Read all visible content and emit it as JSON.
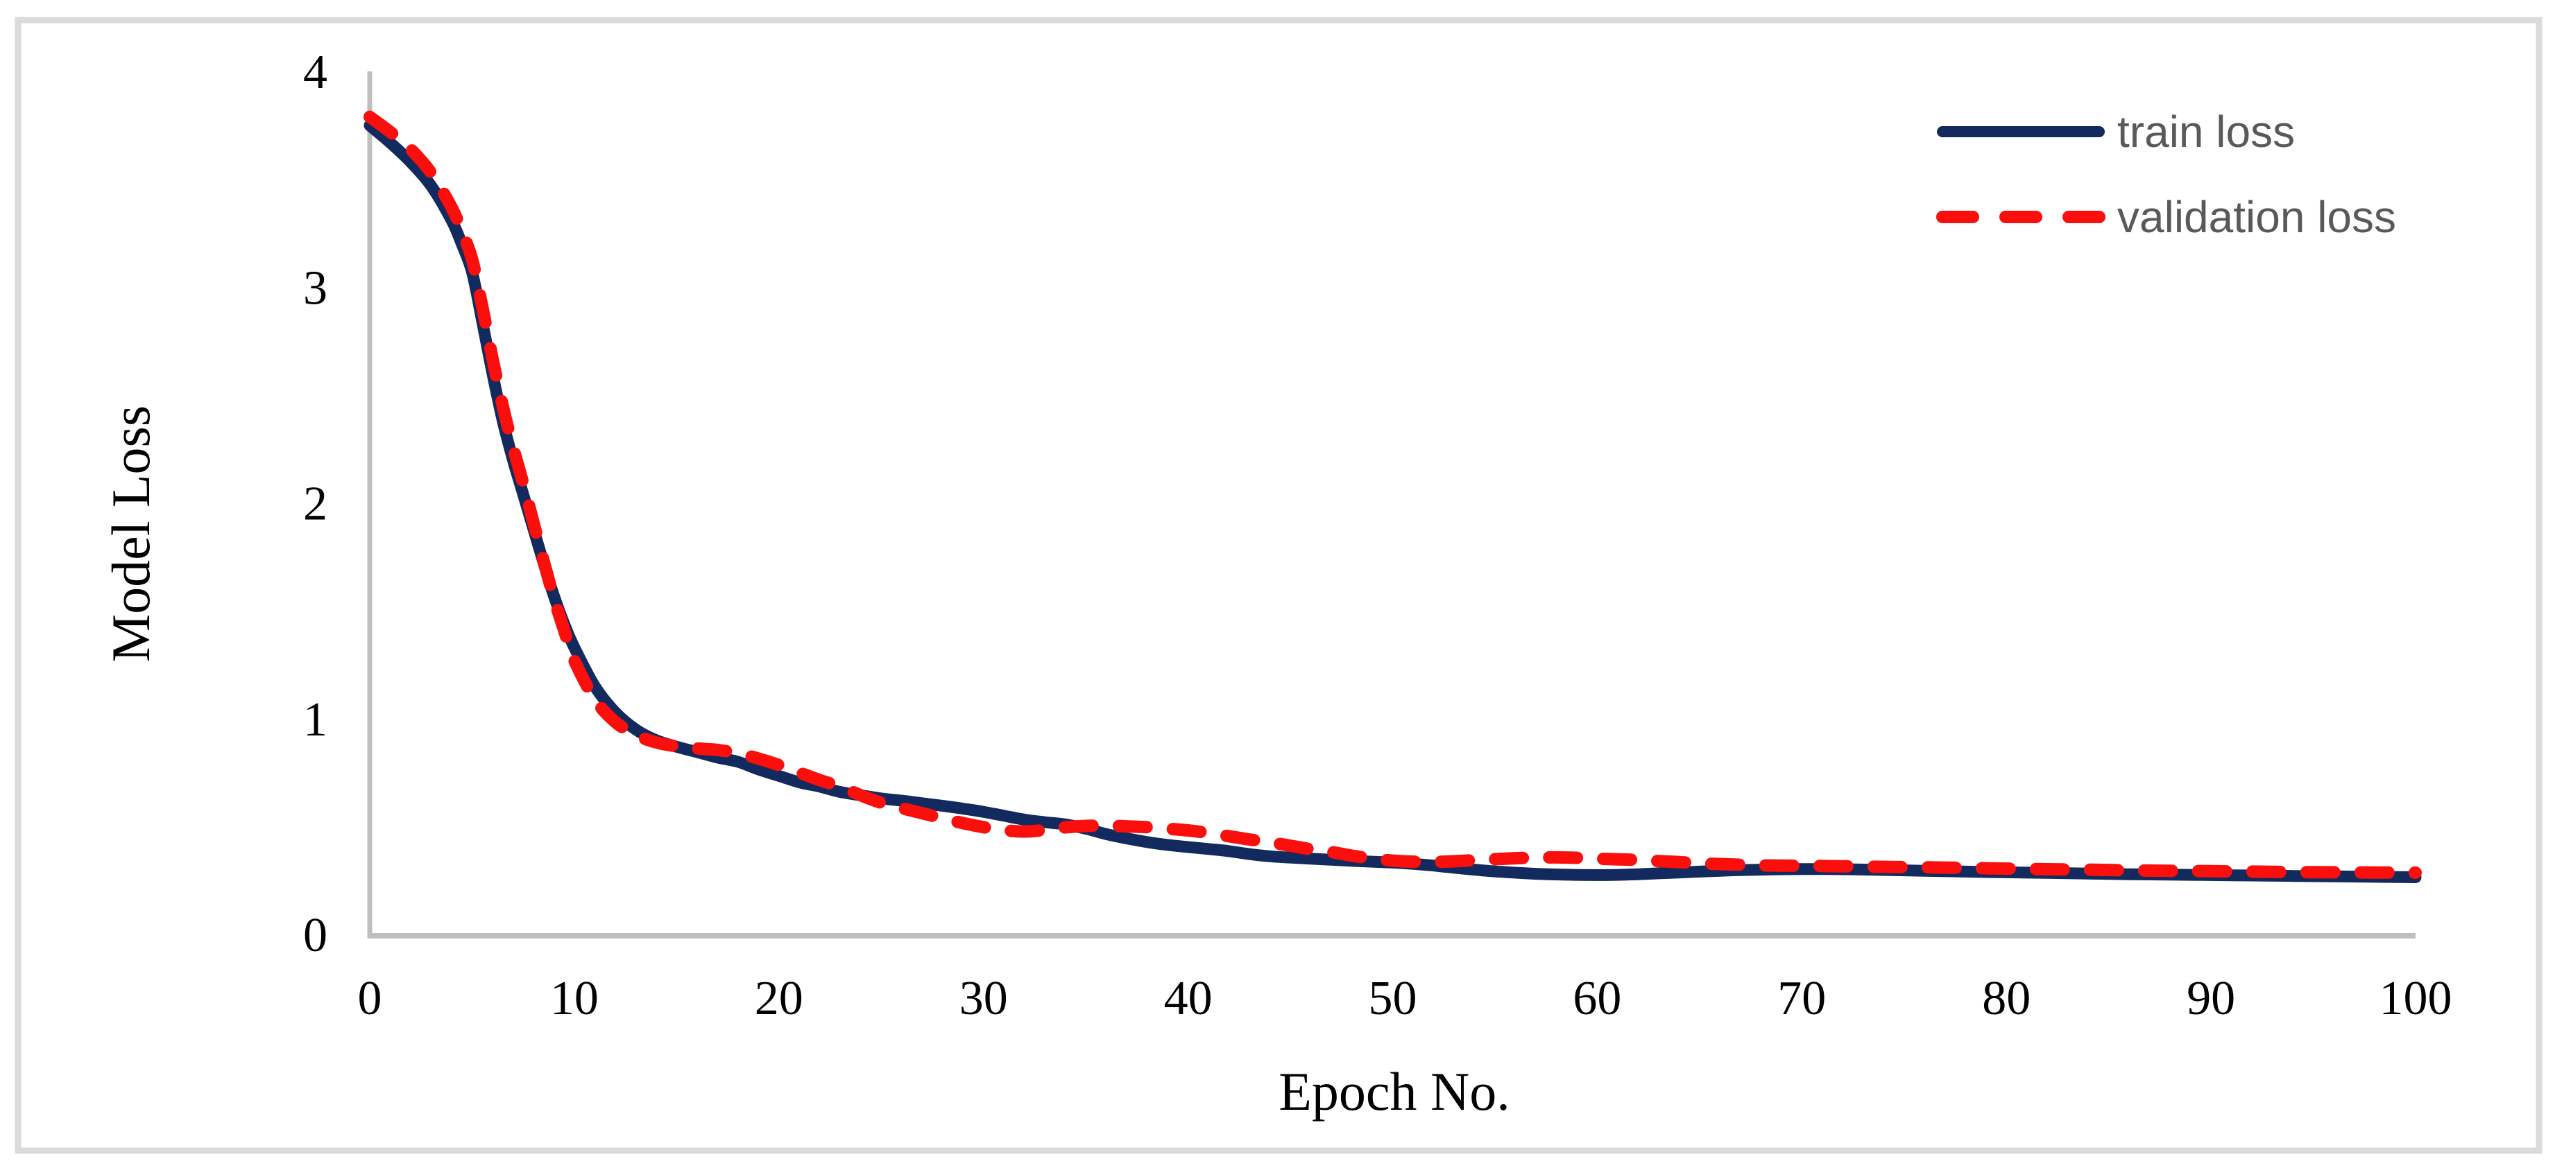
{
  "chart_data": {
    "type": "line",
    "title": "",
    "xlabel": "Epoch No.",
    "ylabel": "Model Loss",
    "xlim": [
      0,
      100
    ],
    "ylim": [
      0,
      4
    ],
    "x_ticks": [
      "0",
      "10",
      "20",
      "30",
      "40",
      "50",
      "60",
      "70",
      "80",
      "90",
      "100"
    ],
    "y_ticks": [
      "0",
      "1",
      "2",
      "3",
      "4"
    ],
    "grid": false,
    "legend_position": "top-right",
    "axis_color": "#bfbfbf",
    "border_color": "#dbdbdb",
    "series": [
      {
        "name": "train loss",
        "color": "#132a5e",
        "style": "solid",
        "points": [
          [
            0,
            3.75
          ],
          [
            1,
            3.67
          ],
          [
            2,
            3.58
          ],
          [
            3,
            3.47
          ],
          [
            4,
            3.31
          ],
          [
            4.5,
            3.2
          ],
          [
            5,
            3.07
          ],
          [
            5.5,
            2.84
          ],
          [
            6,
            2.6
          ],
          [
            6.5,
            2.38
          ],
          [
            7,
            2.2
          ],
          [
            7.5,
            2.04
          ],
          [
            8,
            1.88
          ],
          [
            8.5,
            1.72
          ],
          [
            9,
            1.57
          ],
          [
            9.5,
            1.44
          ],
          [
            10,
            1.33
          ],
          [
            11,
            1.15
          ],
          [
            12,
            1.03
          ],
          [
            13,
            0.95
          ],
          [
            14,
            0.9
          ],
          [
            15,
            0.87
          ],
          [
            16,
            0.845
          ],
          [
            17,
            0.82
          ],
          [
            18,
            0.8
          ],
          [
            19,
            0.765
          ],
          [
            20,
            0.735
          ],
          [
            21,
            0.705
          ],
          [
            22,
            0.685
          ],
          [
            23,
            0.66
          ],
          [
            24,
            0.645
          ],
          [
            25,
            0.63
          ],
          [
            26,
            0.62
          ],
          [
            27,
            0.608
          ],
          [
            28,
            0.596
          ],
          [
            29,
            0.583
          ],
          [
            30,
            0.568
          ],
          [
            31,
            0.55
          ],
          [
            32,
            0.532
          ],
          [
            33,
            0.52
          ],
          [
            34,
            0.51
          ],
          [
            35,
            0.49
          ],
          [
            36,
            0.465
          ],
          [
            37,
            0.445
          ],
          [
            38,
            0.428
          ],
          [
            39,
            0.415
          ],
          [
            40,
            0.405
          ],
          [
            41,
            0.396
          ],
          [
            42,
            0.386
          ],
          [
            43,
            0.372
          ],
          [
            44,
            0.362
          ],
          [
            45,
            0.356
          ],
          [
            46,
            0.351
          ],
          [
            47,
            0.346
          ],
          [
            48,
            0.341
          ],
          [
            49,
            0.337
          ],
          [
            50,
            0.333
          ],
          [
            51,
            0.327
          ],
          [
            52,
            0.319
          ],
          [
            53,
            0.309
          ],
          [
            54,
            0.3
          ],
          [
            55,
            0.292
          ],
          [
            56,
            0.286
          ],
          [
            57,
            0.281
          ],
          [
            58,
            0.278
          ],
          [
            59,
            0.276
          ],
          [
            60,
            0.275
          ],
          [
            61,
            0.276
          ],
          [
            62,
            0.279
          ],
          [
            63,
            0.283
          ],
          [
            64,
            0.287
          ],
          [
            65,
            0.291
          ],
          [
            66,
            0.295
          ],
          [
            67,
            0.298
          ],
          [
            68,
            0.3
          ],
          [
            69,
            0.302
          ],
          [
            70,
            0.303
          ],
          [
            71,
            0.303
          ],
          [
            72,
            0.302
          ],
          [
            74,
            0.299
          ],
          [
            76,
            0.295
          ],
          [
            78,
            0.291
          ],
          [
            80,
            0.288
          ],
          [
            82,
            0.285
          ],
          [
            84,
            0.282
          ],
          [
            86,
            0.279
          ],
          [
            88,
            0.277
          ],
          [
            90,
            0.275
          ],
          [
            92,
            0.273
          ],
          [
            94,
            0.271
          ],
          [
            96,
            0.269
          ],
          [
            98,
            0.267
          ],
          [
            100,
            0.265
          ]
        ]
      },
      {
        "name": "validation loss",
        "color": "#fb0f0c",
        "style": "dashed",
        "points": [
          [
            0,
            3.79
          ],
          [
            1,
            3.72
          ],
          [
            2,
            3.64
          ],
          [
            3,
            3.53
          ],
          [
            4,
            3.37
          ],
          [
            4.5,
            3.26
          ],
          [
            5,
            3.13
          ],
          [
            5.5,
            2.91
          ],
          [
            6,
            2.67
          ],
          [
            6.5,
            2.45
          ],
          [
            7,
            2.26
          ],
          [
            7.5,
            2.09
          ],
          [
            8,
            1.91
          ],
          [
            8.5,
            1.73
          ],
          [
            9,
            1.56
          ],
          [
            9.5,
            1.41
          ],
          [
            10,
            1.27
          ],
          [
            11,
            1.09
          ],
          [
            12,
            0.985
          ],
          [
            13,
            0.925
          ],
          [
            14,
            0.89
          ],
          [
            15,
            0.872
          ],
          [
            16,
            0.862
          ],
          [
            17,
            0.855
          ],
          [
            18,
            0.84
          ],
          [
            19,
            0.815
          ],
          [
            20,
            0.785
          ],
          [
            21,
            0.75
          ],
          [
            22,
            0.715
          ],
          [
            23,
            0.685
          ],
          [
            24,
            0.645
          ],
          [
            25,
            0.61
          ],
          [
            26,
            0.585
          ],
          [
            27,
            0.562
          ],
          [
            28,
            0.538
          ],
          [
            29,
            0.516
          ],
          [
            30,
            0.497
          ],
          [
            31,
            0.483
          ],
          [
            32,
            0.477
          ],
          [
            33,
            0.484
          ],
          [
            34,
            0.496
          ],
          [
            35,
            0.503
          ],
          [
            36,
            0.504
          ],
          [
            37,
            0.501
          ],
          [
            38,
            0.497
          ],
          [
            39,
            0.49
          ],
          [
            40,
            0.482
          ],
          [
            41,
            0.47
          ],
          [
            42,
            0.455
          ],
          [
            43,
            0.44
          ],
          [
            44,
            0.427
          ],
          [
            45,
            0.411
          ],
          [
            46,
            0.395
          ],
          [
            47,
            0.382
          ],
          [
            48,
            0.365
          ],
          [
            49,
            0.352
          ],
          [
            50,
            0.342
          ],
          [
            51,
            0.337
          ],
          [
            52,
            0.336
          ],
          [
            53,
            0.339
          ],
          [
            54,
            0.344
          ],
          [
            55,
            0.349
          ],
          [
            56,
            0.353
          ],
          [
            57,
            0.356
          ],
          [
            58,
            0.357
          ],
          [
            59,
            0.355
          ],
          [
            60,
            0.351
          ],
          [
            61,
            0.348
          ],
          [
            62,
            0.345
          ],
          [
            63,
            0.34
          ],
          [
            64,
            0.335
          ],
          [
            65,
            0.33
          ],
          [
            66,
            0.326
          ],
          [
            67,
            0.323
          ],
          [
            68,
            0.32
          ],
          [
            69,
            0.319
          ],
          [
            70,
            0.318
          ],
          [
            71,
            0.317
          ],
          [
            72,
            0.316
          ],
          [
            74,
            0.313
          ],
          [
            76,
            0.311
          ],
          [
            78,
            0.308
          ],
          [
            80,
            0.305
          ],
          [
            82,
            0.302
          ],
          [
            84,
            0.3
          ],
          [
            86,
            0.297
          ],
          [
            88,
            0.295
          ],
          [
            90,
            0.293
          ],
          [
            92,
            0.291
          ],
          [
            94,
            0.289
          ],
          [
            96,
            0.288
          ],
          [
            98,
            0.287
          ],
          [
            100,
            0.286
          ]
        ]
      }
    ]
  },
  "legend": {
    "train_label": "train loss",
    "validation_label": "validation loss"
  }
}
